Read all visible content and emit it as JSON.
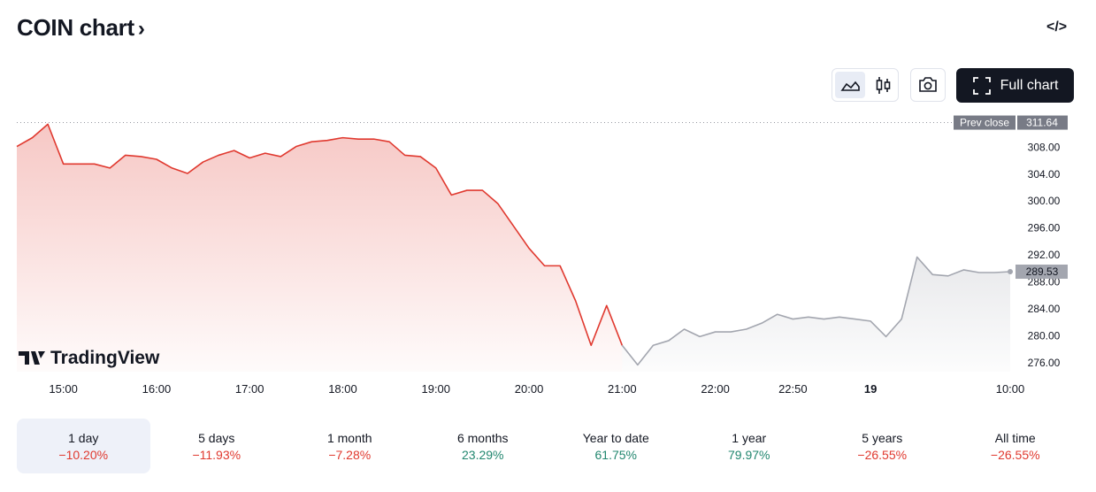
{
  "header": {
    "title": "COIN chart",
    "full_chart": "Full chart"
  },
  "watermark": "TradingView",
  "chart_data": {
    "type": "line",
    "categories": [
      null,
      null,
      null,
      "15:00",
      null,
      null,
      null,
      null,
      null,
      "16:00",
      null,
      null,
      null,
      null,
      null,
      "17:00",
      null,
      null,
      null,
      null,
      null,
      "18:00",
      null,
      null,
      null,
      null,
      null,
      "19:00",
      null,
      null,
      null,
      null,
      null,
      "20:00",
      null,
      null,
      null,
      null,
      null,
      "21:00",
      null,
      null,
      null,
      null,
      null,
      "22:00",
      null,
      null,
      null,
      null,
      "22:50",
      null,
      null,
      null,
      null,
      "19",
      null,
      null,
      null,
      null,
      null,
      null,
      null,
      null,
      "10:00"
    ],
    "series": [
      {
        "color": "#e0392f",
        "values": [
          308.1,
          309.4,
          311.4,
          305.5,
          305.5,
          305.5,
          304.9,
          306.8,
          306.6,
          306.2,
          304.9,
          304.1,
          305.8,
          306.8,
          307.5,
          306.4,
          307.1,
          306.6,
          308.1,
          308.8,
          309.0,
          309.4,
          309.2,
          309.2,
          308.8,
          306.8,
          306.6,
          304.9,
          300.9,
          301.6,
          301.6,
          299.6,
          296.3,
          293.0,
          290.4,
          290.4,
          285.2,
          278.6,
          284.5,
          278.6,
          null,
          null,
          null,
          null,
          null,
          null,
          null,
          null,
          null,
          null,
          null,
          null,
          null,
          null,
          null,
          null,
          null,
          null,
          null,
          null,
          null,
          null,
          null,
          null,
          null
        ]
      },
      {
        "color": "#a3a6af",
        "values": [
          null,
          null,
          null,
          null,
          null,
          null,
          null,
          null,
          null,
          null,
          null,
          null,
          null,
          null,
          null,
          null,
          null,
          null,
          null,
          null,
          null,
          null,
          null,
          null,
          null,
          null,
          null,
          null,
          null,
          null,
          null,
          null,
          null,
          null,
          null,
          null,
          null,
          null,
          null,
          278.6,
          275.7,
          278.6,
          279.3,
          281.0,
          279.9,
          280.6,
          280.6,
          281.0,
          281.9,
          283.2,
          282.5,
          282.8,
          282.5,
          282.8,
          282.5,
          282.2,
          279.9,
          282.5,
          291.7,
          289.1,
          288.9,
          289.8,
          289.4,
          289.4,
          289.53
        ]
      }
    ],
    "prev_close_label": "Prev close",
    "prev_close": 311.64,
    "ylim": [
      274.7,
      312.5
    ],
    "yticks": [
      {
        "value": 276,
        "label": "276.00"
      },
      {
        "value": 280,
        "label": "280.00"
      },
      {
        "value": 284,
        "label": "284.00"
      },
      {
        "value": 288,
        "label": "288.00"
      },
      {
        "value": 292,
        "label": "292.00"
      },
      {
        "value": 296,
        "label": "296.00"
      },
      {
        "value": 300,
        "label": "300.00"
      },
      {
        "value": 304,
        "label": "304.00"
      },
      {
        "value": 308,
        "label": "308.00"
      }
    ]
  },
  "ranges": [
    {
      "label": "1 day",
      "change": "−10.20%"
    },
    {
      "label": "5 days",
      "change": "−11.93%"
    },
    {
      "label": "1 month",
      "change": "−7.28%"
    },
    {
      "label": "6 months",
      "change": "23.29%"
    },
    {
      "label": "Year to date",
      "change": "61.75%"
    },
    {
      "label": "1 year",
      "change": "79.97%"
    },
    {
      "label": "5 years",
      "change": "−26.55%"
    },
    {
      "label": "All time",
      "change": "−26.55%"
    }
  ]
}
